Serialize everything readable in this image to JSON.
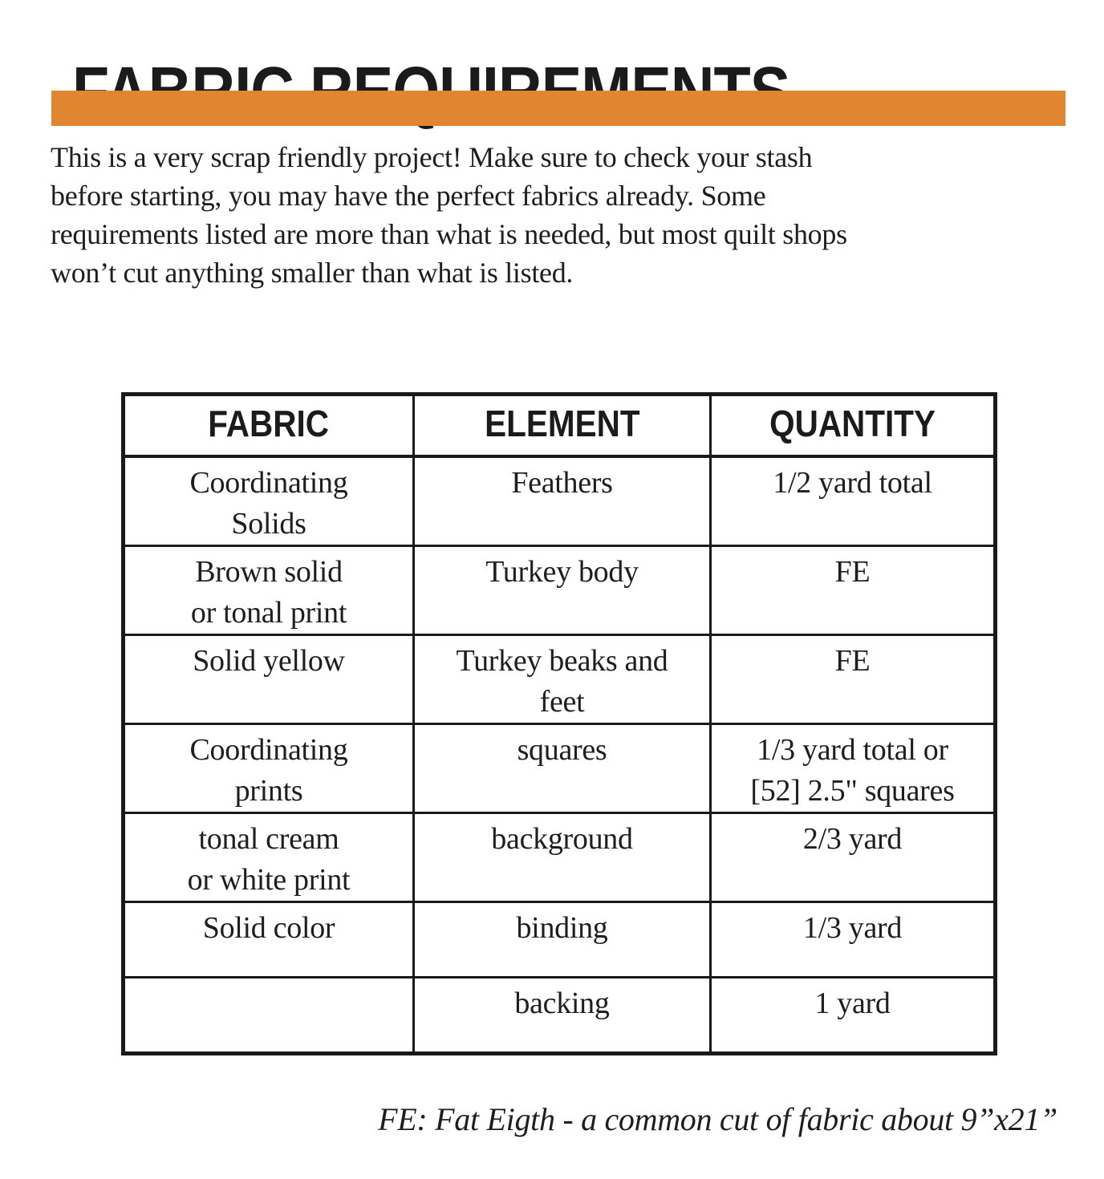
{
  "page": {
    "title": "FABRIC REQUIREMENTS",
    "accent_color": "#e08630",
    "text_color": "#1e1e1e",
    "intro": "This is a very scrap friendly project! Make sure to check your stash\nbefore starting, you may have the perfect fabrics already. Some\nrequirements listed are more than what is needed, but most quilt shops\nwon’t cut anything smaller than what is listed.",
    "footnote": "FE: Fat Eigth - a common cut of fabric about 9”x21”"
  },
  "table": {
    "headers": [
      "FABRIC",
      "ELEMENT",
      "QUANTITY"
    ],
    "rows": [
      {
        "fabric": "Coordinating\nSolids",
        "element": "Feathers",
        "quantity": "1/2 yard total"
      },
      {
        "fabric": "Brown solid\nor tonal print",
        "element": "Turkey body",
        "quantity": "FE"
      },
      {
        "fabric": "Solid yellow",
        "element": "Turkey beaks and\nfeet",
        "quantity": "FE"
      },
      {
        "fabric": "Coordinating\nprints",
        "element": "squares",
        "quantity": "1/3 yard total or\n[52] 2.5\" squares"
      },
      {
        "fabric": "tonal cream\nor white print",
        "element": "background",
        "quantity": "2/3 yard"
      },
      {
        "fabric": "Solid color",
        "element": "binding",
        "quantity": "1/3 yard"
      },
      {
        "fabric": "",
        "element": "backing",
        "quantity": "1 yard"
      }
    ]
  }
}
